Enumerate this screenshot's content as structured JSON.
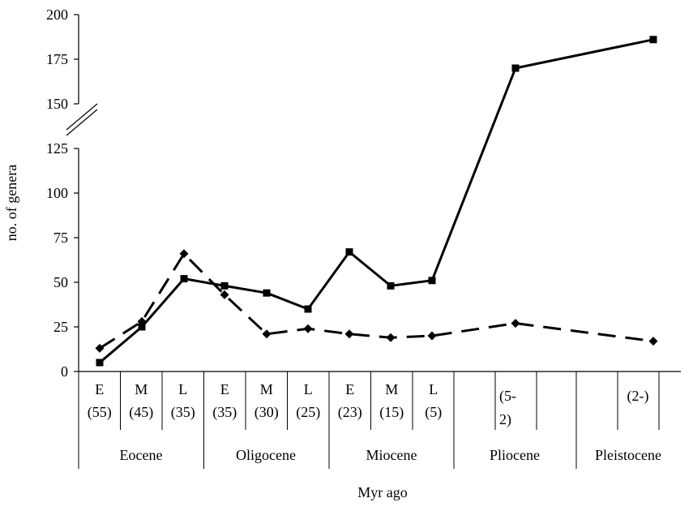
{
  "chart_data": {
    "type": "line",
    "title": "",
    "xlabel": "Myr ago",
    "ylabel": "no. of genera",
    "ylim_lower": [
      0,
      125
    ],
    "ylim_upper": [
      150,
      200
    ],
    "axis_break": true,
    "yticks": [
      {
        "value": 0,
        "label": "0"
      },
      {
        "value": 25,
        "label": "25"
      },
      {
        "value": 50,
        "label": "50"
      },
      {
        "value": 75,
        "label": "75"
      },
      {
        "value": 100,
        "label": "100"
      },
      {
        "value": 125,
        "label": "125"
      },
      {
        "value": 150,
        "label": "150"
      },
      {
        "value": 175,
        "label": "175"
      },
      {
        "value": 200,
        "label": "200"
      }
    ],
    "categories": [
      {
        "sub": "E",
        "age": "(55)"
      },
      {
        "sub": "M",
        "age": "(45)"
      },
      {
        "sub": "L",
        "age": "(35)"
      },
      {
        "sub": "E",
        "age": "(35)"
      },
      {
        "sub": "M",
        "age": "(30)"
      },
      {
        "sub": "L",
        "age": "(25)"
      },
      {
        "sub": "E",
        "age": "(23)"
      },
      {
        "sub": "M",
        "age": "(15)"
      },
      {
        "sub": "L",
        "age": "(5)"
      },
      {
        "sub": "",
        "age": "(5-",
        "age2": "2)"
      },
      {
        "sub": "",
        "age": "(2-)"
      }
    ],
    "epochs": [
      "Eocene",
      "Oligocene",
      "Miocene",
      "Pliocene",
      "Pleistocene"
    ],
    "series": [
      {
        "style": "solid",
        "marker": "square",
        "values": [
          5,
          25,
          52,
          48,
          44,
          35,
          67,
          48,
          51,
          170,
          186
        ]
      },
      {
        "style": "dashed",
        "marker": "diamond",
        "values": [
          13,
          28,
          66,
          43,
          21,
          24,
          21,
          19,
          20,
          27,
          17
        ]
      }
    ]
  }
}
